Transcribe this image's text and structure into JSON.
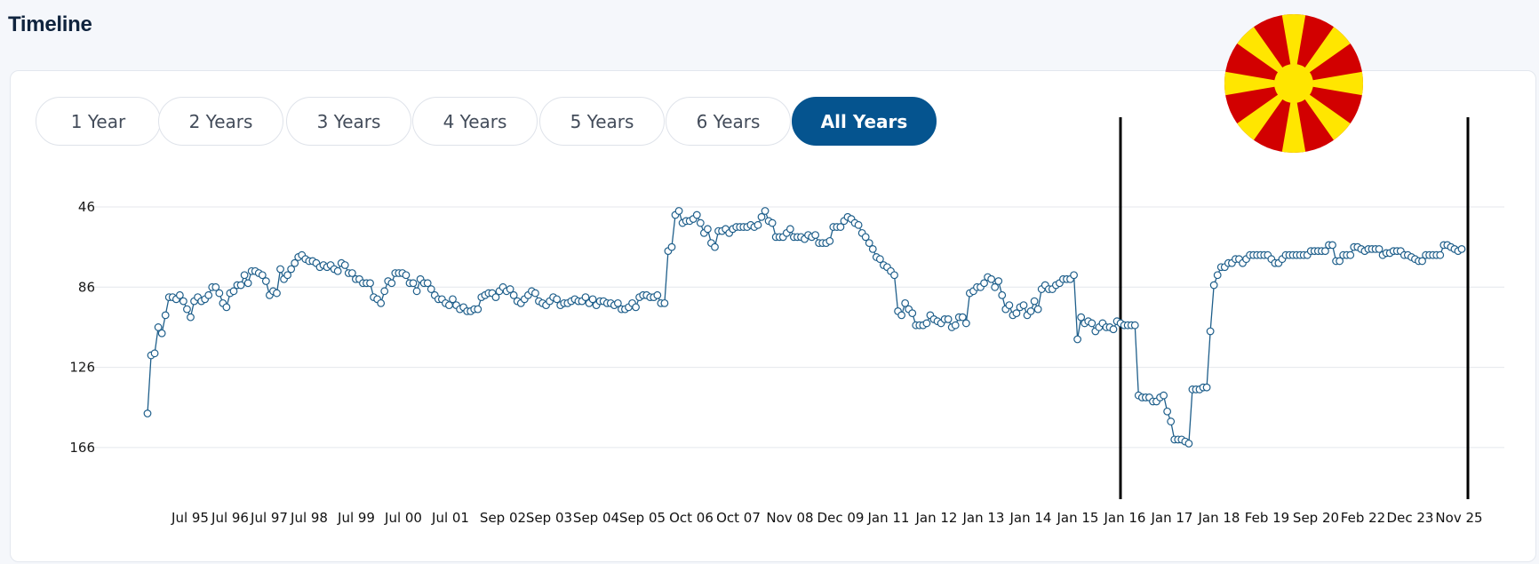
{
  "page": {
    "title": "Timeline"
  },
  "tabs": [
    {
      "label": "1 Year",
      "active": false
    },
    {
      "label": "2 Years",
      "active": false
    },
    {
      "label": "3 Years",
      "active": false
    },
    {
      "label": "4 Years",
      "active": false
    },
    {
      "label": "5 Years",
      "active": false
    },
    {
      "label": "6 Years",
      "active": false
    },
    {
      "label": "All Years",
      "active": true
    }
  ],
  "flag": {
    "icon": "north-macedonia-flag-icon",
    "red": "#d20000",
    "yellow": "#ffe600"
  },
  "chart_data": {
    "type": "line",
    "line_color": "#1f5f8b",
    "marker": "hollow-circle",
    "y_inverted": true,
    "ylim": [
      46,
      172
    ],
    "yticks": [
      46,
      86,
      126,
      166
    ],
    "grid": true,
    "xlabels": [
      "Jul 95",
      "Jul 96",
      "Jul 97",
      "Jul 98",
      "Jul 99",
      "Jul 00",
      "Jul 01",
      "Sep 02",
      "Sep 03",
      "Sep 04",
      "Sep 05",
      "Oct 06",
      "Oct 07",
      "Nov 08",
      "Dec 09",
      "Jan 11",
      "Jan 12",
      "Jan 13",
      "Jan 14",
      "Jan 15",
      "Jan 16",
      "Jan 17",
      "Jan 18",
      "Feb 19",
      "Sep 20",
      "Feb 22",
      "Dec 23",
      "Nov 25"
    ],
    "vertical_markers": [
      "Jan 16",
      "Nov 25"
    ],
    "series": [
      {
        "values": [
          149,
          120,
          119,
          106,
          109,
          100,
          91,
          91,
          92,
          90,
          93,
          97,
          101,
          93,
          91,
          93,
          92,
          90,
          86,
          86,
          89,
          94,
          96,
          89,
          88,
          85,
          85,
          80,
          84,
          78,
          78,
          79,
          80,
          83,
          90,
          88,
          89,
          77,
          82,
          80,
          77,
          74,
          71,
          70,
          72,
          73,
          73,
          74,
          76,
          75,
          76,
          75,
          77,
          78,
          74,
          75,
          79,
          79,
          82,
          82,
          84,
          84,
          84,
          91,
          92,
          94,
          88,
          83,
          84,
          79,
          79,
          79,
          80,
          84,
          84,
          88,
          82,
          84,
          84,
          87,
          90,
          92,
          92,
          94,
          95,
          92,
          95,
          97,
          96,
          98,
          98,
          97,
          97,
          91,
          90,
          89,
          89,
          91,
          88,
          86,
          88,
          87,
          90,
          93,
          94,
          92,
          90,
          88,
          89,
          93,
          94,
          95,
          93,
          91,
          92,
          95,
          94,
          94,
          93,
          92,
          93,
          93,
          91,
          94,
          92,
          95,
          93,
          93,
          94,
          94,
          95,
          94,
          97,
          97,
          96,
          94,
          96,
          91,
          90,
          90,
          91,
          91,
          90,
          94,
          94,
          68,
          66,
          50,
          48,
          54,
          53,
          53,
          52,
          50,
          54,
          59,
          57,
          64,
          66,
          58,
          58,
          57,
          59,
          57,
          56,
          56,
          56,
          56,
          55,
          56,
          55,
          51,
          48,
          53,
          54,
          61,
          61,
          61,
          59,
          57,
          61,
          61,
          61,
          62,
          60,
          61,
          60,
          64,
          64,
          64,
          63,
          56,
          56,
          56,
          53,
          51,
          52,
          54,
          55,
          59,
          61,
          64,
          67,
          71,
          72,
          75,
          76,
          78,
          80,
          98,
          100,
          94,
          97,
          99,
          105,
          105,
          105,
          104,
          100,
          102,
          103,
          104,
          102,
          102,
          106,
          105,
          101,
          101,
          104,
          89,
          88,
          86,
          86,
          84,
          81,
          82,
          86,
          83,
          90,
          97,
          95,
          100,
          99,
          96,
          95,
          100,
          98,
          93,
          97,
          87,
          85,
          87,
          87,
          85,
          84,
          82,
          82,
          82,
          80,
          112,
          101,
          104,
          103,
          104,
          108,
          106,
          104,
          106,
          106,
          107,
          103,
          104,
          105,
          105,
          105,
          105,
          140,
          141,
          141,
          141,
          143,
          143,
          141,
          140,
          148,
          153,
          162,
          162,
          162,
          163,
          164,
          137,
          137,
          137,
          136,
          136,
          108,
          85,
          80,
          76,
          76,
          74,
          74,
          72,
          72,
          74,
          72,
          70,
          70,
          70,
          70,
          70,
          70,
          72,
          74,
          74,
          72,
          70,
          70,
          70,
          70,
          70,
          70,
          70,
          68,
          68,
          68,
          68,
          68,
          65,
          65,
          73,
          73,
          70,
          70,
          70,
          66,
          66,
          67,
          68,
          67,
          67,
          67,
          67,
          70,
          69,
          69,
          68,
          68,
          68,
          70,
          70,
          71,
          72,
          73,
          73,
          70,
          70,
          70,
          70,
          70,
          65,
          65,
          66,
          67,
          68,
          67
        ]
      }
    ]
  }
}
